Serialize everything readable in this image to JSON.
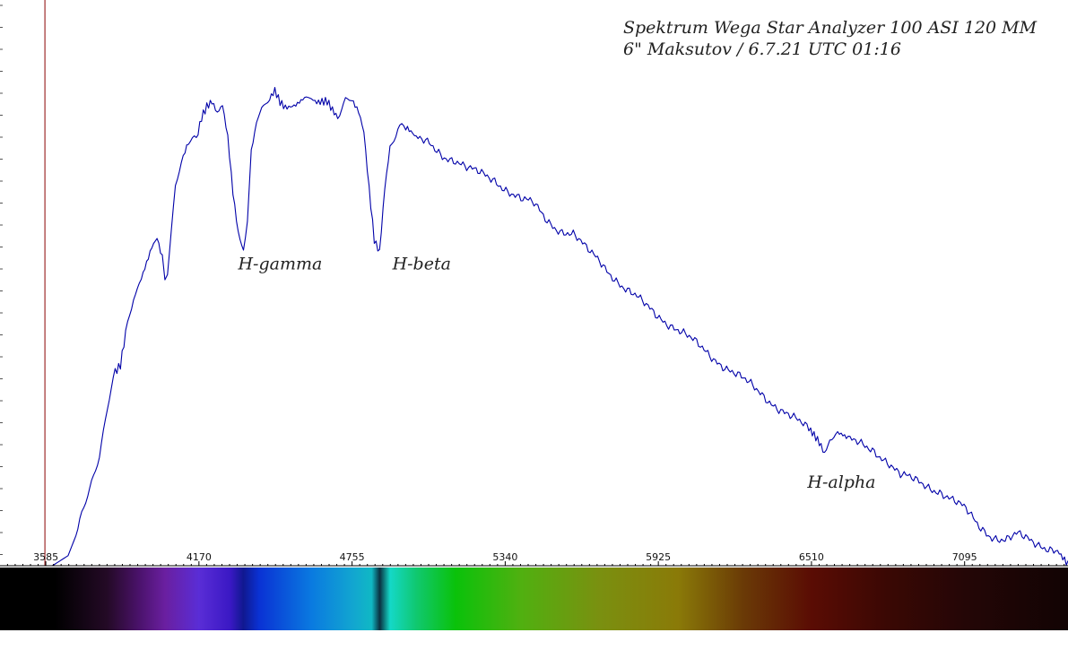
{
  "chart_data": {
    "type": "line",
    "title": "Spektrum Wega Star Analyzer 100 ASI 120 MM",
    "subtitle": "6\" Maksutov / 6.7.21 UTC 01:16",
    "xlabel": "",
    "ylabel": "",
    "xlim": [
      3410,
      7490
    ],
    "ylim": [
      0,
      1.03
    ],
    "x_ticks": [
      3585,
      4170,
      4755,
      5340,
      5925,
      6510,
      7095
    ],
    "grid": false,
    "series_color": "#0000a8",
    "marker_line_color": "#8b0000",
    "series": [
      {
        "points": [
          [
            3610,
            0.0
          ],
          [
            3640,
            0.01
          ],
          [
            3670,
            0.02
          ],
          [
            3700,
            0.06
          ],
          [
            3730,
            0.11
          ],
          [
            3760,
            0.17
          ],
          [
            3790,
            0.22
          ],
          [
            3820,
            0.31
          ],
          [
            3850,
            0.39
          ],
          [
            3870,
            0.4
          ],
          [
            3890,
            0.46
          ],
          [
            3920,
            0.54
          ],
          [
            3950,
            0.57
          ],
          [
            3990,
            0.64
          ],
          [
            4010,
            0.66
          ],
          [
            4030,
            0.62
          ],
          [
            4040,
            0.57
          ],
          [
            4050,
            0.59
          ],
          [
            4080,
            0.76
          ],
          [
            4110,
            0.81
          ],
          [
            4130,
            0.84
          ],
          [
            4160,
            0.85
          ],
          [
            4180,
            0.89
          ],
          [
            4200,
            0.91
          ],
          [
            4220,
            0.92
          ],
          [
            4240,
            0.9
          ],
          [
            4260,
            0.92
          ],
          [
            4280,
            0.86
          ],
          [
            4300,
            0.75
          ],
          [
            4320,
            0.67
          ],
          [
            4340,
            0.63
          ],
          [
            4355,
            0.7
          ],
          [
            4370,
            0.83
          ],
          [
            4390,
            0.89
          ],
          [
            4410,
            0.92
          ],
          [
            4440,
            0.93
          ],
          [
            4460,
            0.95
          ],
          [
            4480,
            0.93
          ],
          [
            4500,
            0.92
          ],
          [
            4540,
            0.92
          ],
          [
            4580,
            0.93
          ],
          [
            4620,
            0.92
          ],
          [
            4660,
            0.93
          ],
          [
            4700,
            0.9
          ],
          [
            4730,
            0.93
          ],
          [
            4760,
            0.92
          ],
          [
            4780,
            0.9
          ],
          [
            4800,
            0.86
          ],
          [
            4820,
            0.75
          ],
          [
            4840,
            0.65
          ],
          [
            4860,
            0.63
          ],
          [
            4880,
            0.76
          ],
          [
            4900,
            0.84
          ],
          [
            4930,
            0.87
          ],
          [
            4960,
            0.87
          ],
          [
            5000,
            0.85
          ],
          [
            5050,
            0.84
          ],
          [
            5100,
            0.82
          ],
          [
            5150,
            0.81
          ],
          [
            5200,
            0.79
          ],
          [
            5250,
            0.78
          ],
          [
            5300,
            0.77
          ],
          [
            5350,
            0.75
          ],
          [
            5400,
            0.73
          ],
          [
            5450,
            0.72
          ],
          [
            5500,
            0.69
          ],
          [
            5550,
            0.67
          ],
          [
            5600,
            0.66
          ],
          [
            5650,
            0.63
          ],
          [
            5700,
            0.61
          ],
          [
            5750,
            0.58
          ],
          [
            5800,
            0.55
          ],
          [
            5850,
            0.53
          ],
          [
            5900,
            0.51
          ],
          [
            5950,
            0.49
          ],
          [
            6000,
            0.47
          ],
          [
            6050,
            0.45
          ],
          [
            6100,
            0.43
          ],
          [
            6150,
            0.41
          ],
          [
            6200,
            0.39
          ],
          [
            6250,
            0.37
          ],
          [
            6300,
            0.35
          ],
          [
            6350,
            0.33
          ],
          [
            6400,
            0.31
          ],
          [
            6450,
            0.29
          ],
          [
            6500,
            0.27
          ],
          [
            6540,
            0.24
          ],
          [
            6560,
            0.22
          ],
          [
            6580,
            0.25
          ],
          [
            6610,
            0.26
          ],
          [
            6650,
            0.25
          ],
          [
            6700,
            0.24
          ],
          [
            6750,
            0.23
          ],
          [
            6800,
            0.21
          ],
          [
            6850,
            0.18
          ],
          [
            6900,
            0.17
          ],
          [
            6950,
            0.16
          ],
          [
            7000,
            0.15
          ],
          [
            7050,
            0.13
          ],
          [
            7100,
            0.11
          ],
          [
            7150,
            0.08
          ],
          [
            7200,
            0.06
          ],
          [
            7250,
            0.05
          ],
          [
            7300,
            0.06
          ],
          [
            7350,
            0.05
          ],
          [
            7400,
            0.04
          ],
          [
            7450,
            0.03
          ],
          [
            7490,
            0.01
          ]
        ]
      }
    ],
    "annotations": [
      {
        "text": "H-gamma",
        "x": 4340,
        "y": 0.63
      },
      {
        "text": "H-beta",
        "x": 4861,
        "y": 0.63
      },
      {
        "text": "H-alpha",
        "x": 6563,
        "y": 0.22
      }
    ],
    "spectrum_bar": {
      "stops": [
        {
          "x": 3410,
          "color": "#000000"
        },
        {
          "x": 3620,
          "color": "#000000"
        },
        {
          "x": 3820,
          "color": "#240a26"
        },
        {
          "x": 3940,
          "color": "#4a126a"
        },
        {
          "x": 4040,
          "color": "#6a1fa0"
        },
        {
          "x": 4170,
          "color": "#5a2dd6"
        },
        {
          "x": 4290,
          "color": "#3a18c4"
        },
        {
          "x": 4340,
          "color": "#101890"
        },
        {
          "x": 4400,
          "color": "#0a32d4"
        },
        {
          "x": 4600,
          "color": "#0a7ae0"
        },
        {
          "x": 4760,
          "color": "#12a6d0"
        },
        {
          "x": 4830,
          "color": "#10b8c4"
        },
        {
          "x": 4861,
          "color": "#0a3040"
        },
        {
          "x": 4900,
          "color": "#14d8c8"
        },
        {
          "x": 5000,
          "color": "#10c870"
        },
        {
          "x": 5150,
          "color": "#0ac20a"
        },
        {
          "x": 5400,
          "color": "#50b010"
        },
        {
          "x": 5700,
          "color": "#7a9010"
        },
        {
          "x": 6000,
          "color": "#8a7a08"
        },
        {
          "x": 6250,
          "color": "#6a3a06"
        },
        {
          "x": 6510,
          "color": "#5a0c04"
        },
        {
          "x": 6800,
          "color": "#3a0804"
        },
        {
          "x": 7100,
          "color": "#240606"
        },
        {
          "x": 7490,
          "color": "#120404"
        }
      ]
    }
  }
}
